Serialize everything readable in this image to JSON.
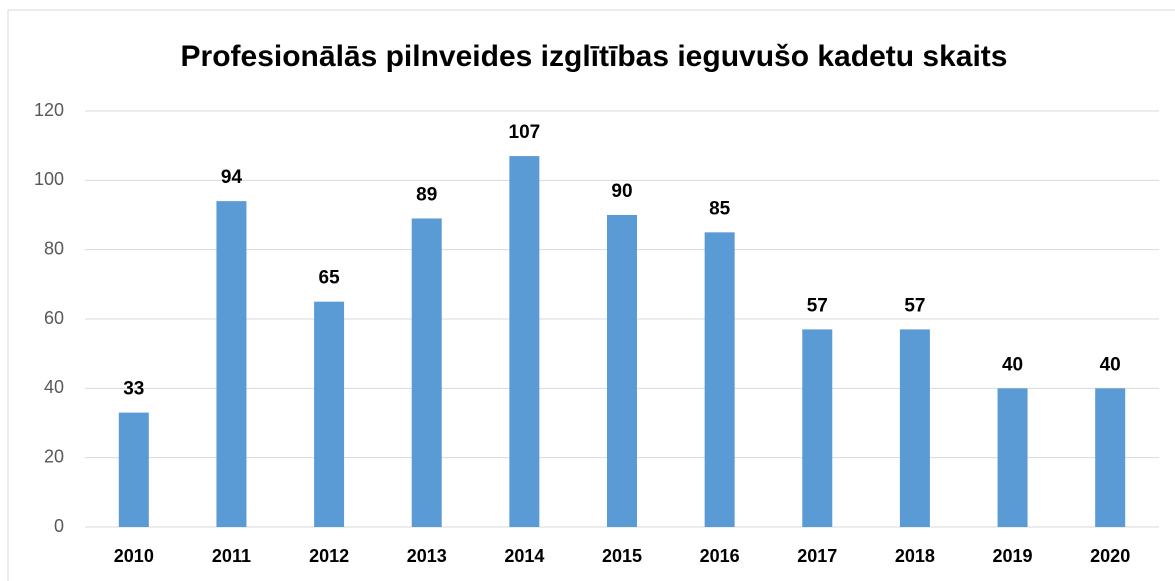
{
  "chart_data": {
    "type": "bar",
    "title": "Profesionālās pilnveides izglītības ieguvušo kadetu skaits",
    "categories": [
      "2010",
      "2011",
      "2012",
      "2013",
      "2014",
      "2015",
      "2016",
      "2017",
      "2018",
      "2019",
      "2020"
    ],
    "values": [
      33,
      94,
      65,
      89,
      107,
      90,
      85,
      57,
      57,
      40,
      40
    ],
    "color": "#5b9bd5",
    "ylim": [
      0,
      120
    ],
    "yticks": [
      0,
      20,
      40,
      60,
      80,
      100,
      120
    ],
    "grid": true
  }
}
